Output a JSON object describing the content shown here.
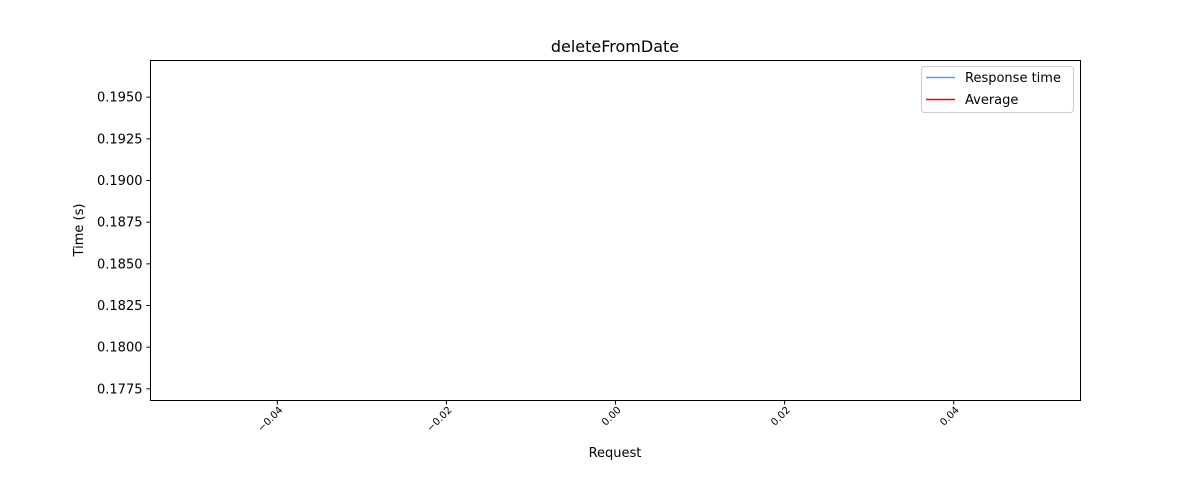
{
  "chart_data": {
    "type": "line",
    "title": "deleteFromDate",
    "xlabel": "Request",
    "ylabel": "Time (s)",
    "xlim": [
      -0.055,
      0.055
    ],
    "ylim": [
      0.1768,
      0.1972
    ],
    "xticks": [
      "−0.04",
      "−0.02",
      "0.00",
      "0.02",
      "0.04"
    ],
    "xtick_values": [
      -0.04,
      -0.02,
      0.0,
      0.02,
      0.04
    ],
    "yticks": [
      "0.1775",
      "0.1800",
      "0.1825",
      "0.1850",
      "0.1875",
      "0.1900",
      "0.1925",
      "0.1950"
    ],
    "ytick_values": [
      0.1775,
      0.18,
      0.1825,
      0.185,
      0.1875,
      0.19,
      0.1925,
      0.195
    ],
    "grid": false,
    "legend_position": "top-right",
    "series": [
      {
        "name": "Response time",
        "color": "#6495ED",
        "x": [],
        "y": []
      },
      {
        "name": "Average",
        "color": "#FF0000",
        "x": [],
        "y": []
      }
    ]
  }
}
